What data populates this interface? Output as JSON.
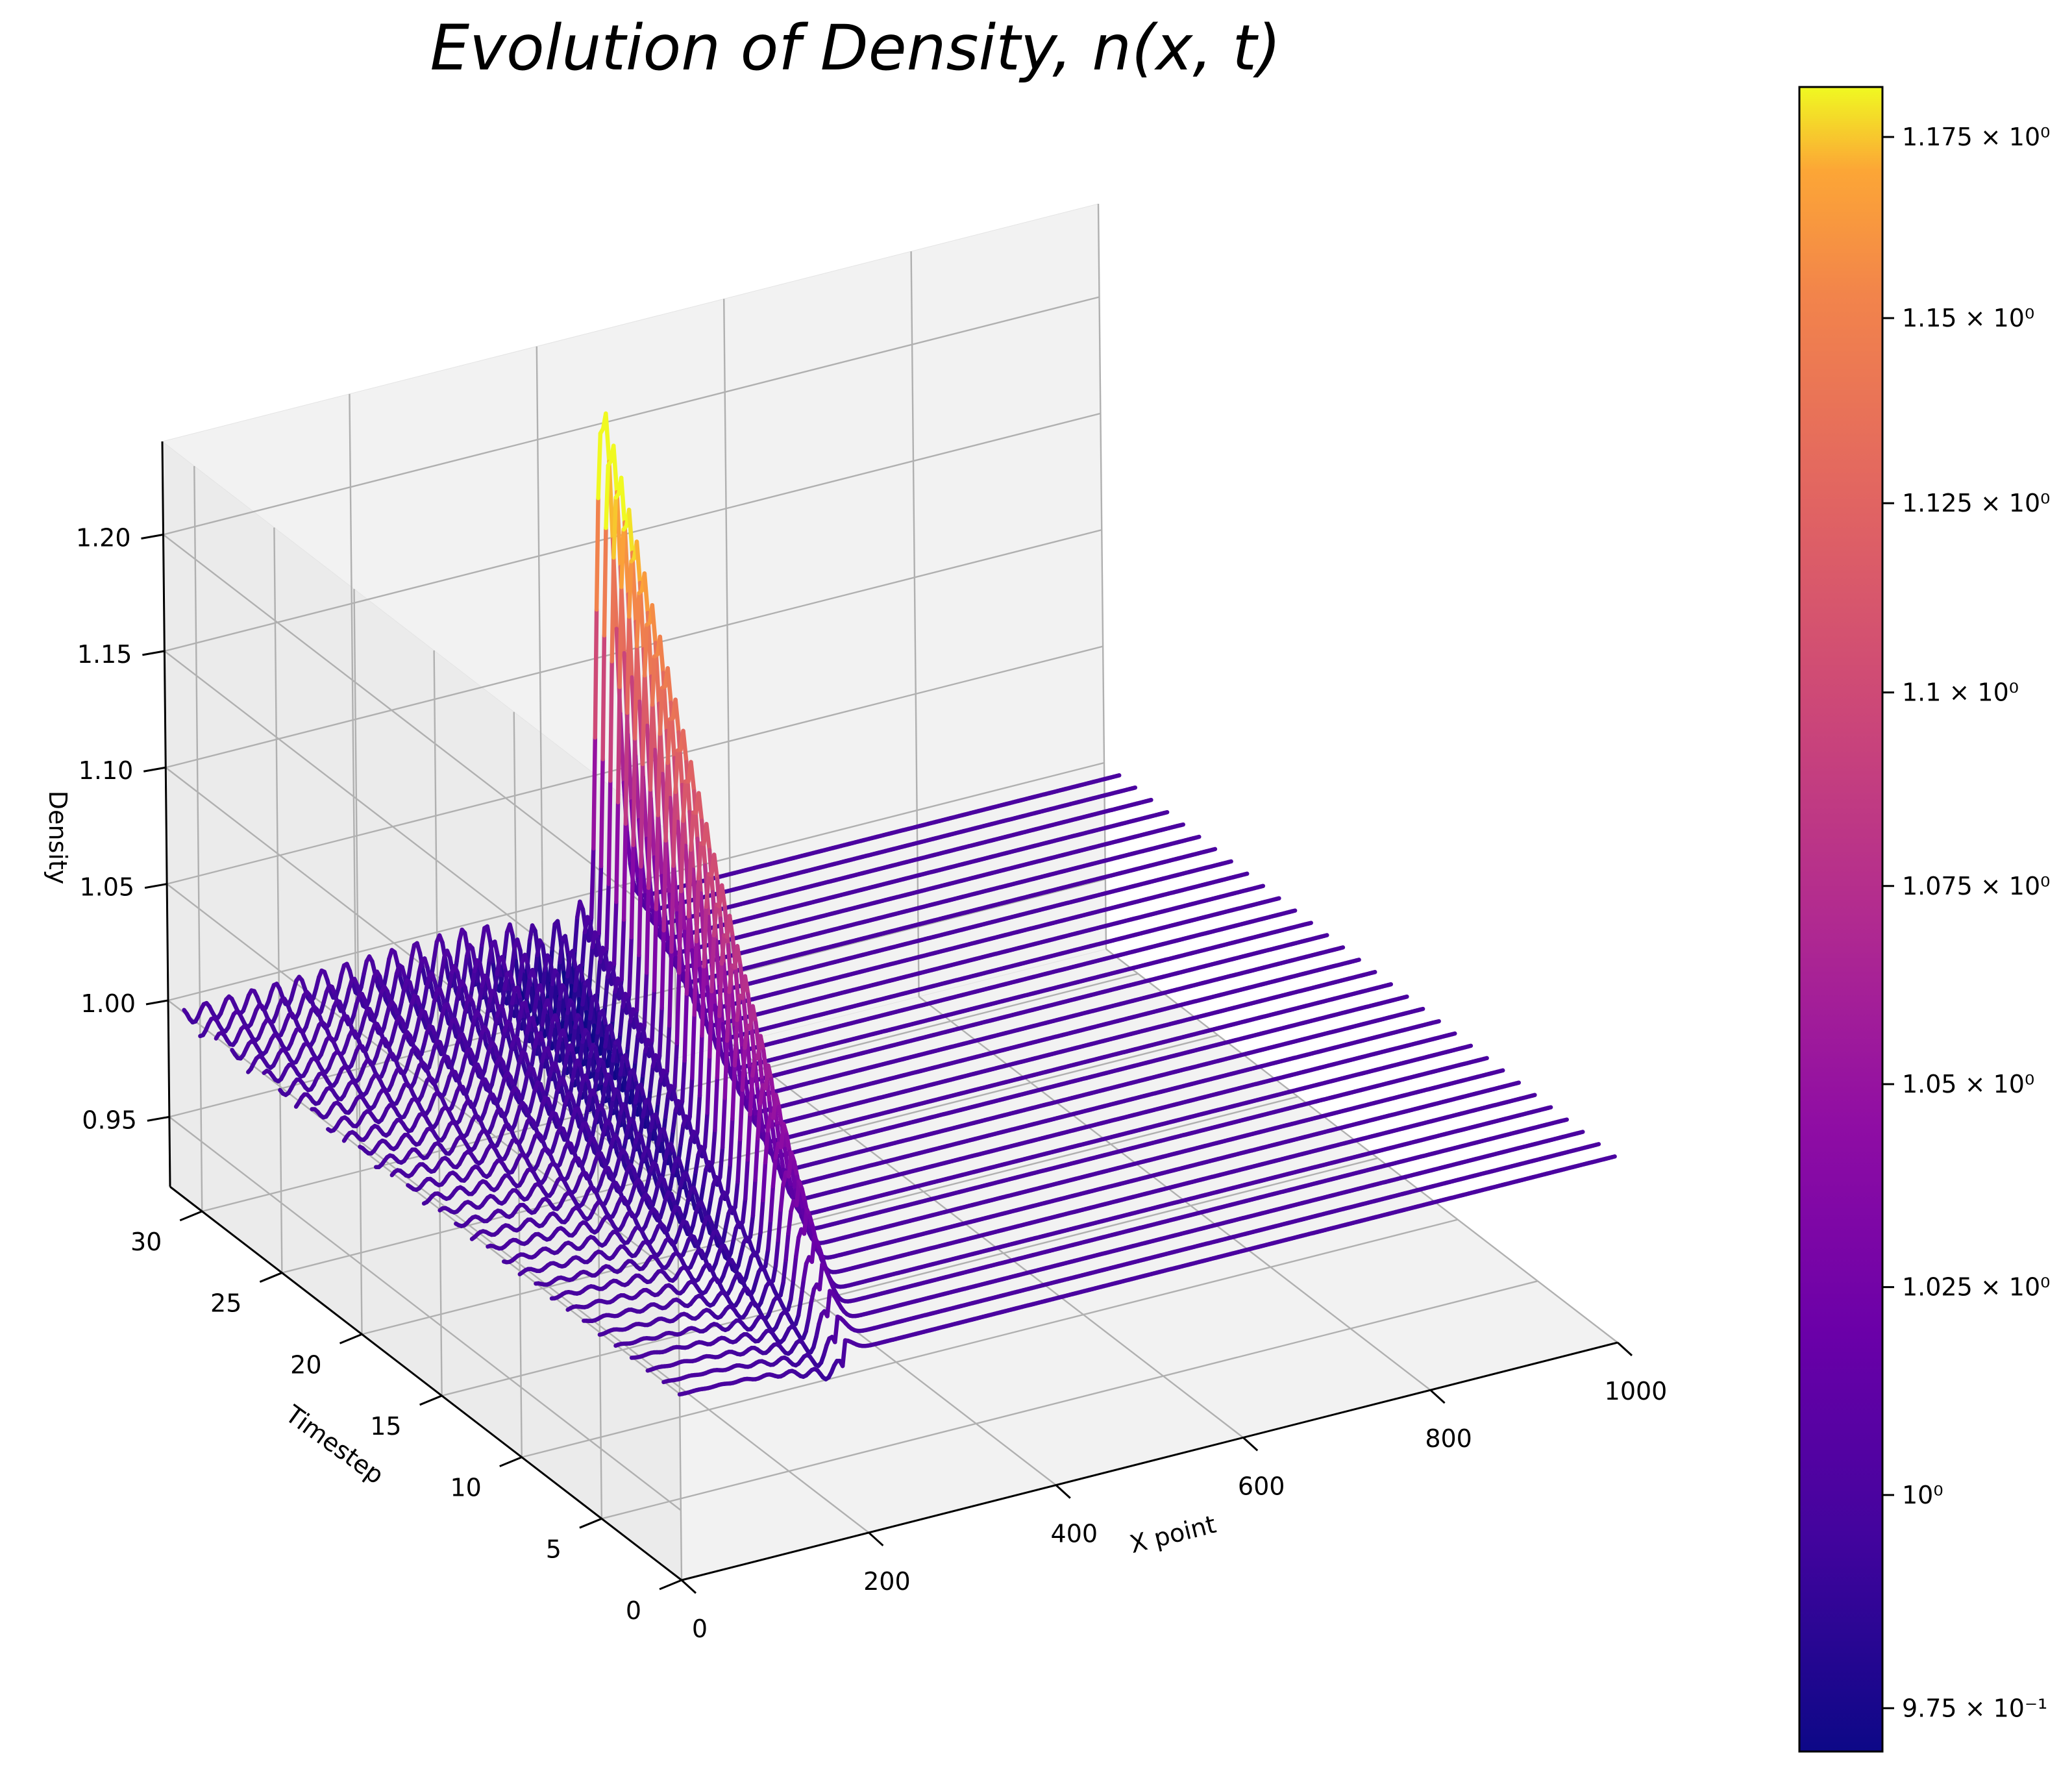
{
  "chart_data": {
    "type": "line",
    "projection": "3d-waterfall",
    "title": "Evolution of Density,  n(x, t)",
    "xlabel": "X point",
    "ylabel": "Timestep",
    "zlabel": "Density",
    "xlim": [
      0,
      1000
    ],
    "ylim": [
      0,
      32
    ],
    "zlim": [
      0.92,
      1.24
    ],
    "x_ticks": [
      "0",
      "200",
      "400",
      "600",
      "800",
      "1000"
    ],
    "y_ticks": [
      "0",
      "5",
      "10",
      "15",
      "20",
      "25",
      "30"
    ],
    "z_ticks": [
      "0.95",
      "1.00",
      "1.05",
      "1.10",
      "1.15",
      "1.20"
    ],
    "grid": true,
    "colormap": "plasma",
    "colorbar": {
      "scale": "log",
      "range": [
        0.97,
        1.182
      ],
      "ticks": [
        {
          "value": 0.975,
          "label": "9.75 × 10⁻¹"
        },
        {
          "value": 1.0,
          "label": "10⁰"
        },
        {
          "value": 1.025,
          "label": "1.025 × 10⁰"
        },
        {
          "value": 1.05,
          "label": "1.05 × 10⁰"
        },
        {
          "value": 1.075,
          "label": "1.075 × 10⁰"
        },
        {
          "value": 1.1,
          "label": "1.1 × 10⁰"
        },
        {
          "value": 1.125,
          "label": "1.125 × 10⁰"
        },
        {
          "value": 1.15,
          "label": "1.15 × 10⁰"
        },
        {
          "value": 1.175,
          "label": "1.175 × 10⁰"
        }
      ]
    },
    "series_count": 32,
    "baseline_density": 1.0,
    "pulse_start_x": 175,
    "pulse_speed_per_step": 9,
    "peak_amplitude_start": 0.005,
    "peak_amplitude_end": 0.215,
    "trailing_dip": -0.012,
    "oscillation_spacing_x": 25
  }
}
